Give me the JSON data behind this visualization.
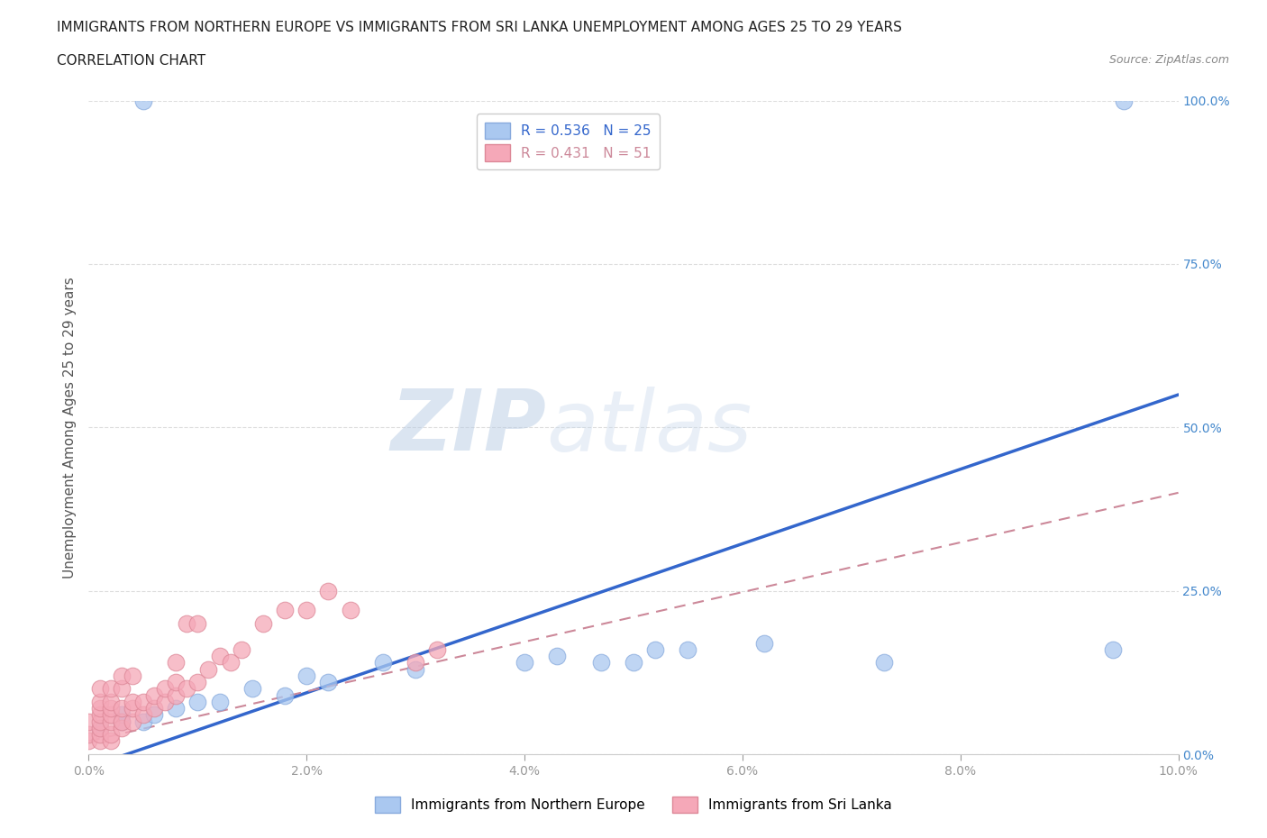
{
  "title_line1": "IMMIGRANTS FROM NORTHERN EUROPE VS IMMIGRANTS FROM SRI LANKA UNEMPLOYMENT AMONG AGES 25 TO 29 YEARS",
  "title_line2": "CORRELATION CHART",
  "source": "Source: ZipAtlas.com",
  "ylabel": "Unemployment Among Ages 25 to 29 years",
  "R_blue": 0.536,
  "N_blue": 25,
  "R_pink": 0.431,
  "N_pink": 51,
  "blue_color": "#aac8f0",
  "blue_edge_color": "#88aadd",
  "pink_color": "#f5a8b8",
  "pink_edge_color": "#dd8898",
  "blue_line_color": "#3366cc",
  "pink_line_color": "#cc8899",
  "watermark_color": "#c8d8ec",
  "watermark": "ZIPatlas",
  "xlim": [
    0,
    0.1
  ],
  "ylim": [
    0,
    1.0
  ],
  "xticks": [
    0,
    0.02,
    0.04,
    0.06,
    0.08,
    0.1
  ],
  "yticks": [
    0.0,
    0.25,
    0.5,
    0.75,
    1.0
  ],
  "blue_line_x0": 0.0,
  "blue_line_y0": -0.02,
  "blue_line_x1": 0.1,
  "blue_line_y1": 0.55,
  "pink_line_x0": 0.0,
  "pink_line_y0": 0.02,
  "pink_line_x1": 0.1,
  "pink_line_y1": 0.4,
  "blue_x": [
    0.005,
    0.001,
    0.003,
    0.003,
    0.005,
    0.006,
    0.008,
    0.01,
    0.012,
    0.015,
    0.018,
    0.02,
    0.022,
    0.027,
    0.03,
    0.04,
    0.043,
    0.047,
    0.05,
    0.052,
    0.055,
    0.062,
    0.073,
    0.094,
    0.095
  ],
  "blue_y": [
    1.0,
    0.04,
    0.05,
    0.06,
    0.05,
    0.06,
    0.07,
    0.08,
    0.08,
    0.1,
    0.09,
    0.12,
    0.11,
    0.14,
    0.13,
    0.14,
    0.15,
    0.14,
    0.14,
    0.16,
    0.16,
    0.17,
    0.14,
    0.16,
    1.0
  ],
  "pink_x": [
    0.0,
    0.0,
    0.0,
    0.001,
    0.001,
    0.001,
    0.001,
    0.001,
    0.001,
    0.001,
    0.001,
    0.002,
    0.002,
    0.002,
    0.002,
    0.002,
    0.002,
    0.002,
    0.003,
    0.003,
    0.003,
    0.003,
    0.003,
    0.004,
    0.004,
    0.004,
    0.004,
    0.005,
    0.005,
    0.006,
    0.006,
    0.007,
    0.007,
    0.008,
    0.008,
    0.008,
    0.009,
    0.009,
    0.01,
    0.01,
    0.011,
    0.012,
    0.013,
    0.014,
    0.016,
    0.018,
    0.02,
    0.022,
    0.024,
    0.03,
    0.032
  ],
  "pink_y": [
    0.02,
    0.03,
    0.05,
    0.02,
    0.03,
    0.04,
    0.05,
    0.06,
    0.07,
    0.08,
    0.1,
    0.02,
    0.03,
    0.05,
    0.06,
    0.07,
    0.08,
    0.1,
    0.04,
    0.05,
    0.07,
    0.1,
    0.12,
    0.05,
    0.07,
    0.08,
    0.12,
    0.06,
    0.08,
    0.07,
    0.09,
    0.08,
    0.1,
    0.09,
    0.11,
    0.14,
    0.1,
    0.2,
    0.11,
    0.2,
    0.13,
    0.15,
    0.14,
    0.16,
    0.2,
    0.22,
    0.22,
    0.25,
    0.22,
    0.14,
    0.16
  ],
  "background_color": "#ffffff",
  "grid_color": "#dddddd",
  "title_fontsize": 11,
  "source_fontsize": 9,
  "legend_fontsize": 11,
  "ylabel_fontsize": 11,
  "tick_fontsize": 10
}
